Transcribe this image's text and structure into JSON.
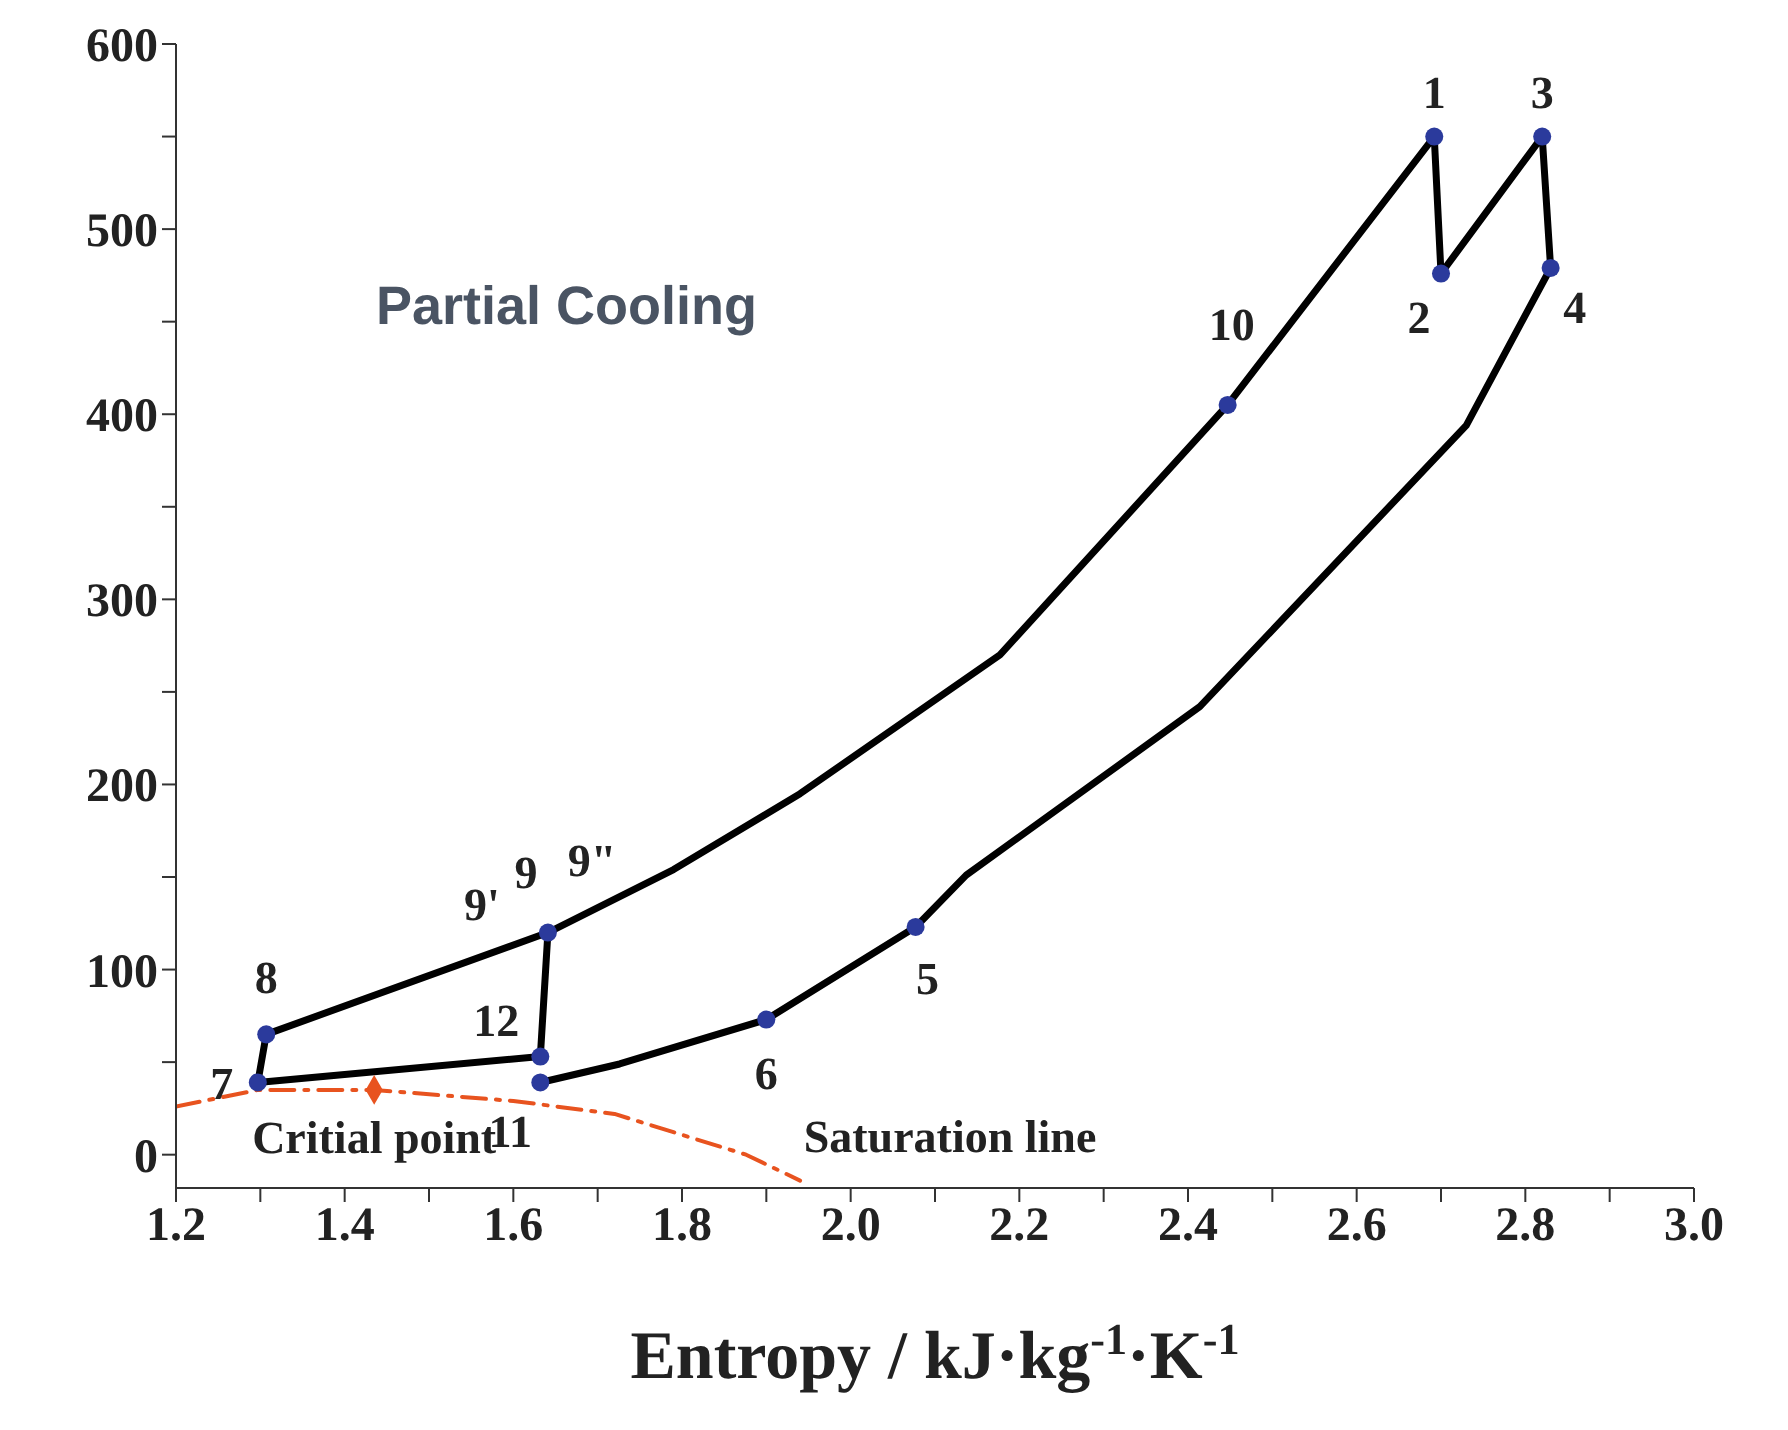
{
  "chart_data": {
    "type": "line",
    "title": "Partial Cooling",
    "xlabel": "Entropy / kJ·kg$^{-1}$·K$^{-1}$",
    "xlim": [
      1.2,
      3.0
    ],
    "ylim": [
      -18,
      600
    ],
    "xticks": [
      1.2,
      {
        "value": 1.3,
        "label": null
      },
      1.4,
      {
        "value": 1.5,
        "label": null
      },
      1.6,
      {
        "value": 1.7,
        "label": null
      },
      1.8,
      {
        "value": 1.9,
        "label": null
      },
      {
        "value": 2.0,
        "label": "2.0"
      },
      {
        "value": 2.1,
        "label": null
      },
      2.2,
      {
        "value": 2.3,
        "label": null
      },
      2.4,
      {
        "value": 2.5,
        "label": null
      },
      2.6,
      {
        "value": 2.7,
        "label": null
      },
      2.8,
      {
        "value": 2.9,
        "label": null
      },
      {
        "value": 3.0,
        "label": "3.0"
      }
    ],
    "yticks": [
      0,
      {
        "value": 50,
        "label": null
      },
      100,
      {
        "value": 150,
        "label": null
      },
      200,
      {
        "value": 250,
        "label": null
      },
      300,
      {
        "value": 350,
        "label": null
      },
      400,
      {
        "value": 450,
        "label": null
      },
      500,
      {
        "value": 550,
        "label": null
      },
      600
    ],
    "grid": false,
    "legend": false,
    "series": [
      {
        "color": "#000000",
        "marker": "none",
        "line_style": "solid",
        "x": [
          1.297,
          1.307,
          1.641,
          1.79,
          1.94,
          2.177,
          2.447,
          2.692,
          2.7,
          2.82,
          2.83,
          2.73,
          2.414,
          2.137,
          2.077,
          1.9,
          1.726,
          1.632
        ],
        "values": [
          39,
          65,
          120,
          154,
          195,
          270,
          405,
          550,
          476,
          550,
          479,
          394,
          242,
          151,
          123,
          73,
          49,
          39
        ]
      },
      {
        "color": "#000000",
        "marker": "none",
        "line_style": "solid",
        "x": [
          1.297,
          1.632,
          1.641
        ],
        "values": [
          39,
          53,
          120
        ]
      },
      {
        "name": "Saturation line",
        "color": "#e8531f",
        "marker": "none",
        "line_style": "dashed",
        "x": [
          1.2,
          1.297,
          1.435,
          1.6,
          1.72,
          1.876,
          1.94
        ],
        "values": [
          26,
          35,
          35,
          29,
          22,
          0,
          -14
        ]
      },
      {
        "type": "scatter",
        "color": "#2b3a9c",
        "marker": "circle",
        "x": [
          2.692,
          2.7,
          2.82,
          2.83,
          2.077,
          1.9,
          1.297,
          1.307,
          1.641,
          2.447,
          1.632,
          1.632
        ],
        "values": [
          550,
          476,
          550,
          479,
          123,
          73,
          39,
          65,
          120,
          405,
          39,
          53
        ]
      },
      {
        "type": "scatter",
        "color": "#e8531f",
        "marker": "diamond",
        "x": [
          1.435
        ],
        "values": [
          35
        ]
      }
    ],
    "annotations": [
      {
        "text": "1",
        "x": 2.692,
        "y": 550
      },
      {
        "text": "2",
        "x": 2.7,
        "y": 476
      },
      {
        "text": "3",
        "x": 2.82,
        "y": 550
      },
      {
        "text": "4",
        "x": 2.83,
        "y": 479
      },
      {
        "text": "5",
        "x": 2.077,
        "y": 123
      },
      {
        "text": "6",
        "x": 1.9,
        "y": 73
      },
      {
        "text": "7",
        "x": 1.297,
        "y": 39
      },
      {
        "text": "8",
        "x": 1.307,
        "y": 65
      },
      {
        "text": "9'",
        "x": 1.641,
        "y": 120
      },
      {
        "text": "9",
        "x": 1.641,
        "y": 120
      },
      {
        "text": "9\"",
        "x": 1.641,
        "y": 120
      },
      {
        "text": "10",
        "x": 2.447,
        "y": 405
      },
      {
        "text": "11",
        "x": 1.632,
        "y": 39
      },
      {
        "text": "12",
        "x": 1.632,
        "y": 53
      },
      {
        "text": "Critial point",
        "x": 1.435,
        "y": 35
      }
    ]
  }
}
